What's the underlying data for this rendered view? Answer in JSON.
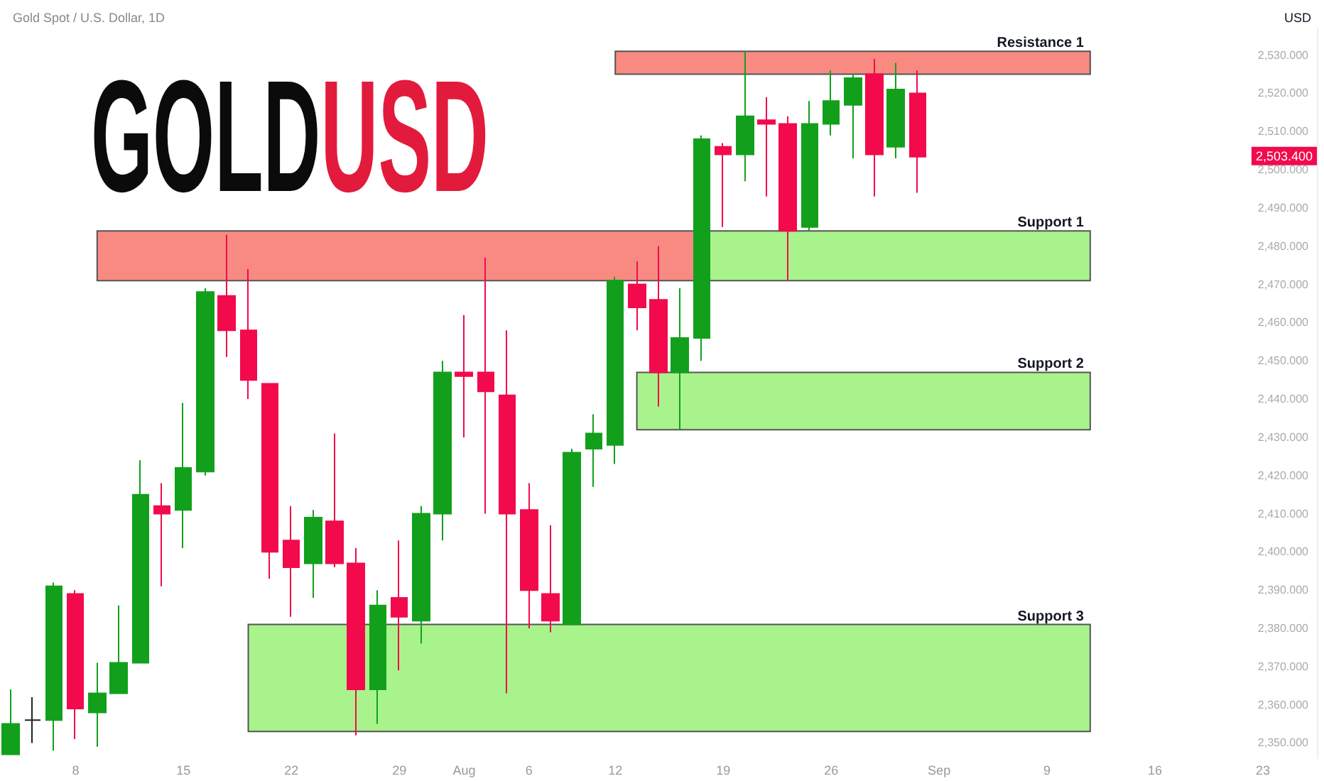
{
  "chart_data": {
    "type": "candlestick",
    "title": "Gold Spot / U.S. Dollar, 1D",
    "ylabel": "USD",
    "annotations": [
      "GOLD",
      "USD"
    ],
    "value_labels": [
      null,
      null,
      null,
      null,
      null,
      null,
      null,
      null,
      null,
      null,
      null,
      null,
      null,
      null,
      null,
      null,
      null,
      null,
      null,
      null,
      null,
      null,
      null,
      null,
      null,
      null,
      null,
      null,
      null,
      null,
      null,
      null,
      null,
      null,
      null,
      null,
      null,
      null,
      null,
      null,
      null,
      null,
      "2,503.400",
      null,
      null,
      null,
      null,
      null,
      null,
      null,
      null,
      null,
      null,
      null,
      null,
      null,
      null,
      null,
      null,
      null,
      null
    ],
    "categories": [
      null,
      null,
      null,
      "8",
      null,
      null,
      null,
      null,
      "15",
      null,
      null,
      null,
      null,
      "22",
      null,
      null,
      null,
      null,
      "29",
      null,
      null,
      "Aug",
      null,
      null,
      "6",
      null,
      null,
      null,
      "12",
      null,
      null,
      null,
      null,
      "19",
      null,
      null,
      null,
      null,
      "26",
      null,
      null,
      null,
      null,
      "Sep",
      null,
      null,
      null,
      null,
      "9",
      null,
      null,
      null,
      null,
      "16",
      null,
      null,
      null,
      null,
      "23",
      null,
      null
    ],
    "ohlc": [
      [
        2347,
        2364,
        2347,
        2355
      ],
      [
        2356,
        2362,
        2350,
        2356
      ],
      [
        2356,
        2392,
        2348,
        2391
      ],
      [
        2389,
        2390,
        2351,
        2359
      ],
      [
        2358,
        2371,
        2349,
        2363
      ],
      [
        2363,
        2386,
        2363,
        2371
      ],
      [
        2371,
        2424,
        2371,
        2415
      ],
      [
        2412,
        2418,
        2391,
        2410
      ],
      [
        2411,
        2439,
        2401,
        2422
      ],
      [
        2421,
        2469,
        2420,
        2468
      ],
      [
        2467,
        2483,
        2451,
        2458
      ],
      [
        2458,
        2474,
        2440,
        2445
      ],
      [
        2444,
        2444,
        2393,
        2400
      ],
      [
        2403,
        2412,
        2383,
        2396
      ],
      [
        2397,
        2411,
        2388,
        2409
      ],
      [
        2408,
        2431,
        2396,
        2397
      ],
      [
        2397,
        2401,
        2352,
        2364
      ],
      [
        2364,
        2390,
        2355,
        2386
      ],
      [
        2388,
        2403,
        2369,
        2383
      ],
      [
        2382,
        2412,
        2376,
        2410
      ],
      [
        2410,
        2450,
        2403,
        2447
      ],
      [
        2447,
        2462,
        2430,
        2446
      ],
      [
        2447,
        2477,
        2410,
        2442
      ],
      [
        2441,
        2458,
        2363,
        2410
      ],
      [
        2411,
        2418,
        2380,
        2390
      ],
      [
        2389,
        2407,
        2379,
        2382
      ],
      [
        2381,
        2427,
        2381,
        2426
      ],
      [
        2427,
        2436,
        2417,
        2431
      ],
      [
        2428,
        2472,
        2423,
        2471
      ],
      [
        2470,
        2476,
        2458,
        2464
      ],
      [
        2466,
        2480,
        2438,
        2447
      ],
      [
        2447,
        2469,
        2432,
        2456
      ],
      [
        2456,
        2509,
        2450,
        2508
      ],
      [
        2506,
        2507,
        2485,
        2504
      ],
      [
        2504,
        2531,
        2497,
        2514
      ],
      [
        2513,
        2519,
        2493,
        2512
      ],
      [
        2512,
        2514,
        2471,
        2484
      ],
      [
        2485,
        2518,
        2484,
        2512
      ],
      [
        2512,
        2526,
        2509,
        2518
      ],
      [
        2517,
        2525,
        2503,
        2524
      ],
      [
        2525,
        2529,
        2493,
        2504
      ],
      [
        2506,
        2528,
        2503,
        2521
      ],
      [
        2520,
        2526,
        2494,
        2503.4
      ],
      null,
      null,
      null,
      null,
      null,
      null,
      null,
      null,
      null,
      null,
      null,
      null,
      null,
      null,
      null,
      null,
      null,
      null
    ],
    "colors": [
      "#12a01c",
      "#222222",
      "#12a01c",
      "#f20a4c",
      "#12a01c",
      "#12a01c",
      "#12a01c",
      "#f20a4c",
      "#12a01c",
      "#12a01c",
      "#f20a4c",
      "#f20a4c",
      "#f20a4c",
      "#f20a4c",
      "#12a01c",
      "#f20a4c",
      "#f20a4c",
      "#12a01c",
      "#f20a4c",
      "#12a01c",
      "#12a01c",
      "#f20a4c",
      "#f20a4c",
      "#f20a4c",
      "#f20a4c",
      "#f20a4c",
      "#12a01c",
      "#12a01c",
      "#12a01c",
      "#f20a4c",
      "#f20a4c",
      "#12a01c",
      "#12a01c",
      "#f20a4c",
      "#12a01c",
      "#f20a4c",
      "#f20a4c",
      "#12a01c",
      "#12a01c",
      "#12a01c",
      "#f20a4c",
      "#12a01c",
      "#f20a4c",
      null,
      null,
      null,
      null,
      null,
      null,
      null,
      null,
      null,
      null,
      null,
      null,
      null,
      null,
      null,
      null,
      null,
      null
    ],
    "ylim": [
      2346,
      2537
    ],
    "yticks": [
      {
        "value": 2350,
        "label": "2,350.000"
      },
      {
        "value": 2360,
        "label": "2,360.000"
      },
      {
        "value": 2370,
        "label": "2,370.000"
      },
      {
        "value": 2380,
        "label": "2,380.000"
      },
      {
        "value": 2390,
        "label": "2,390.000"
      },
      {
        "value": 2400,
        "label": "2,400.000"
      },
      {
        "value": 2410,
        "label": "2,410.000"
      },
      {
        "value": 2420,
        "label": "2,420.000"
      },
      {
        "value": 2430,
        "label": "2,430.000"
      },
      {
        "value": 2440,
        "label": "2,440.000"
      },
      {
        "value": 2450,
        "label": "2,450.000"
      },
      {
        "value": 2460,
        "label": "2,460.000"
      },
      {
        "value": 2470,
        "label": "2,470.000"
      },
      {
        "value": 2480,
        "label": "2,480.000"
      },
      {
        "value": 2490,
        "label": "2,490.000"
      },
      {
        "value": 2500,
        "label": "2,500.000"
      },
      {
        "value": 2510,
        "label": "2,510.000"
      },
      {
        "value": 2520,
        "label": "2,520.000"
      },
      {
        "value": 2530,
        "label": "2,530.000"
      }
    ],
    "grid": false,
    "bands": [
      {
        "axis": "y",
        "from": 2525,
        "to": 2531,
        "label": "Resistance 1",
        "color": "#f88a82"
      },
      {
        "axis": "y",
        "from": 2471,
        "to": 2484,
        "color": "#f88a82"
      },
      {
        "axis": "y",
        "from": 2471,
        "to": 2484,
        "label": "Support 1",
        "color": "#a8f38c"
      },
      {
        "axis": "y",
        "from": 2432,
        "to": 2447,
        "label": "Support 2",
        "color": "#a8f38c"
      },
      {
        "axis": "y",
        "from": 2353,
        "to": 2381,
        "label": "Support 3",
        "color": "#a8f38c"
      }
    ]
  }
}
